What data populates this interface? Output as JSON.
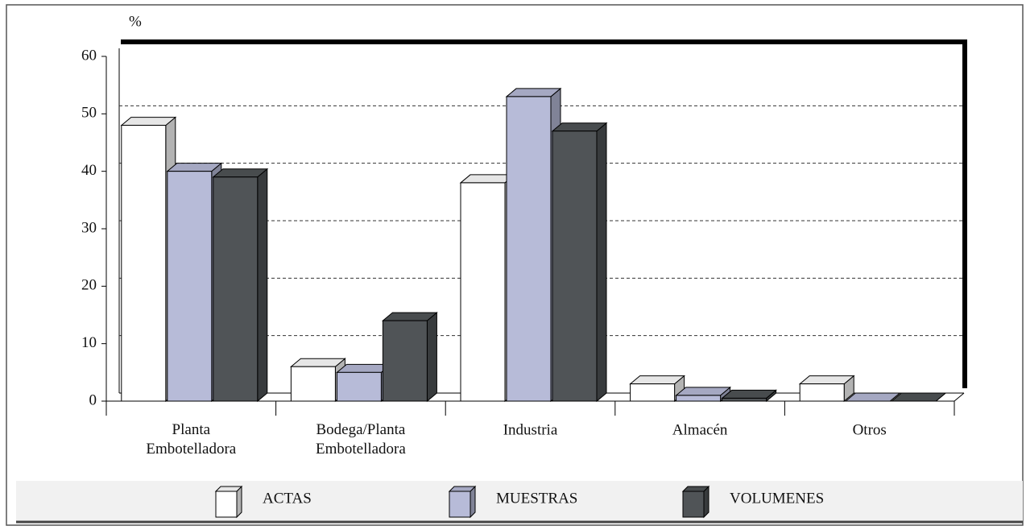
{
  "chart_data": {
    "type": "bar3d",
    "ylabel": "%",
    "categories": [
      "Planta Embotelladora",
      "Bodega/Planta Embotelladora",
      "Industria",
      "Almacén",
      "Otros"
    ],
    "series": [
      {
        "name": "ACTAS",
        "color": "#ffffff",
        "values": [
          48,
          6,
          38,
          3,
          3
        ]
      },
      {
        "name": "MUESTRAS",
        "color": "#b7bbd8",
        "values": [
          40,
          5,
          53,
          1,
          0
        ]
      },
      {
        "name": "VOLUMENES",
        "color": "#505457",
        "values": [
          39,
          14,
          47,
          0.5,
          0
        ]
      }
    ],
    "ylim": [
      0,
      60
    ],
    "yticks": [
      0,
      10,
      20,
      30,
      40,
      50,
      60
    ],
    "grid": true
  }
}
